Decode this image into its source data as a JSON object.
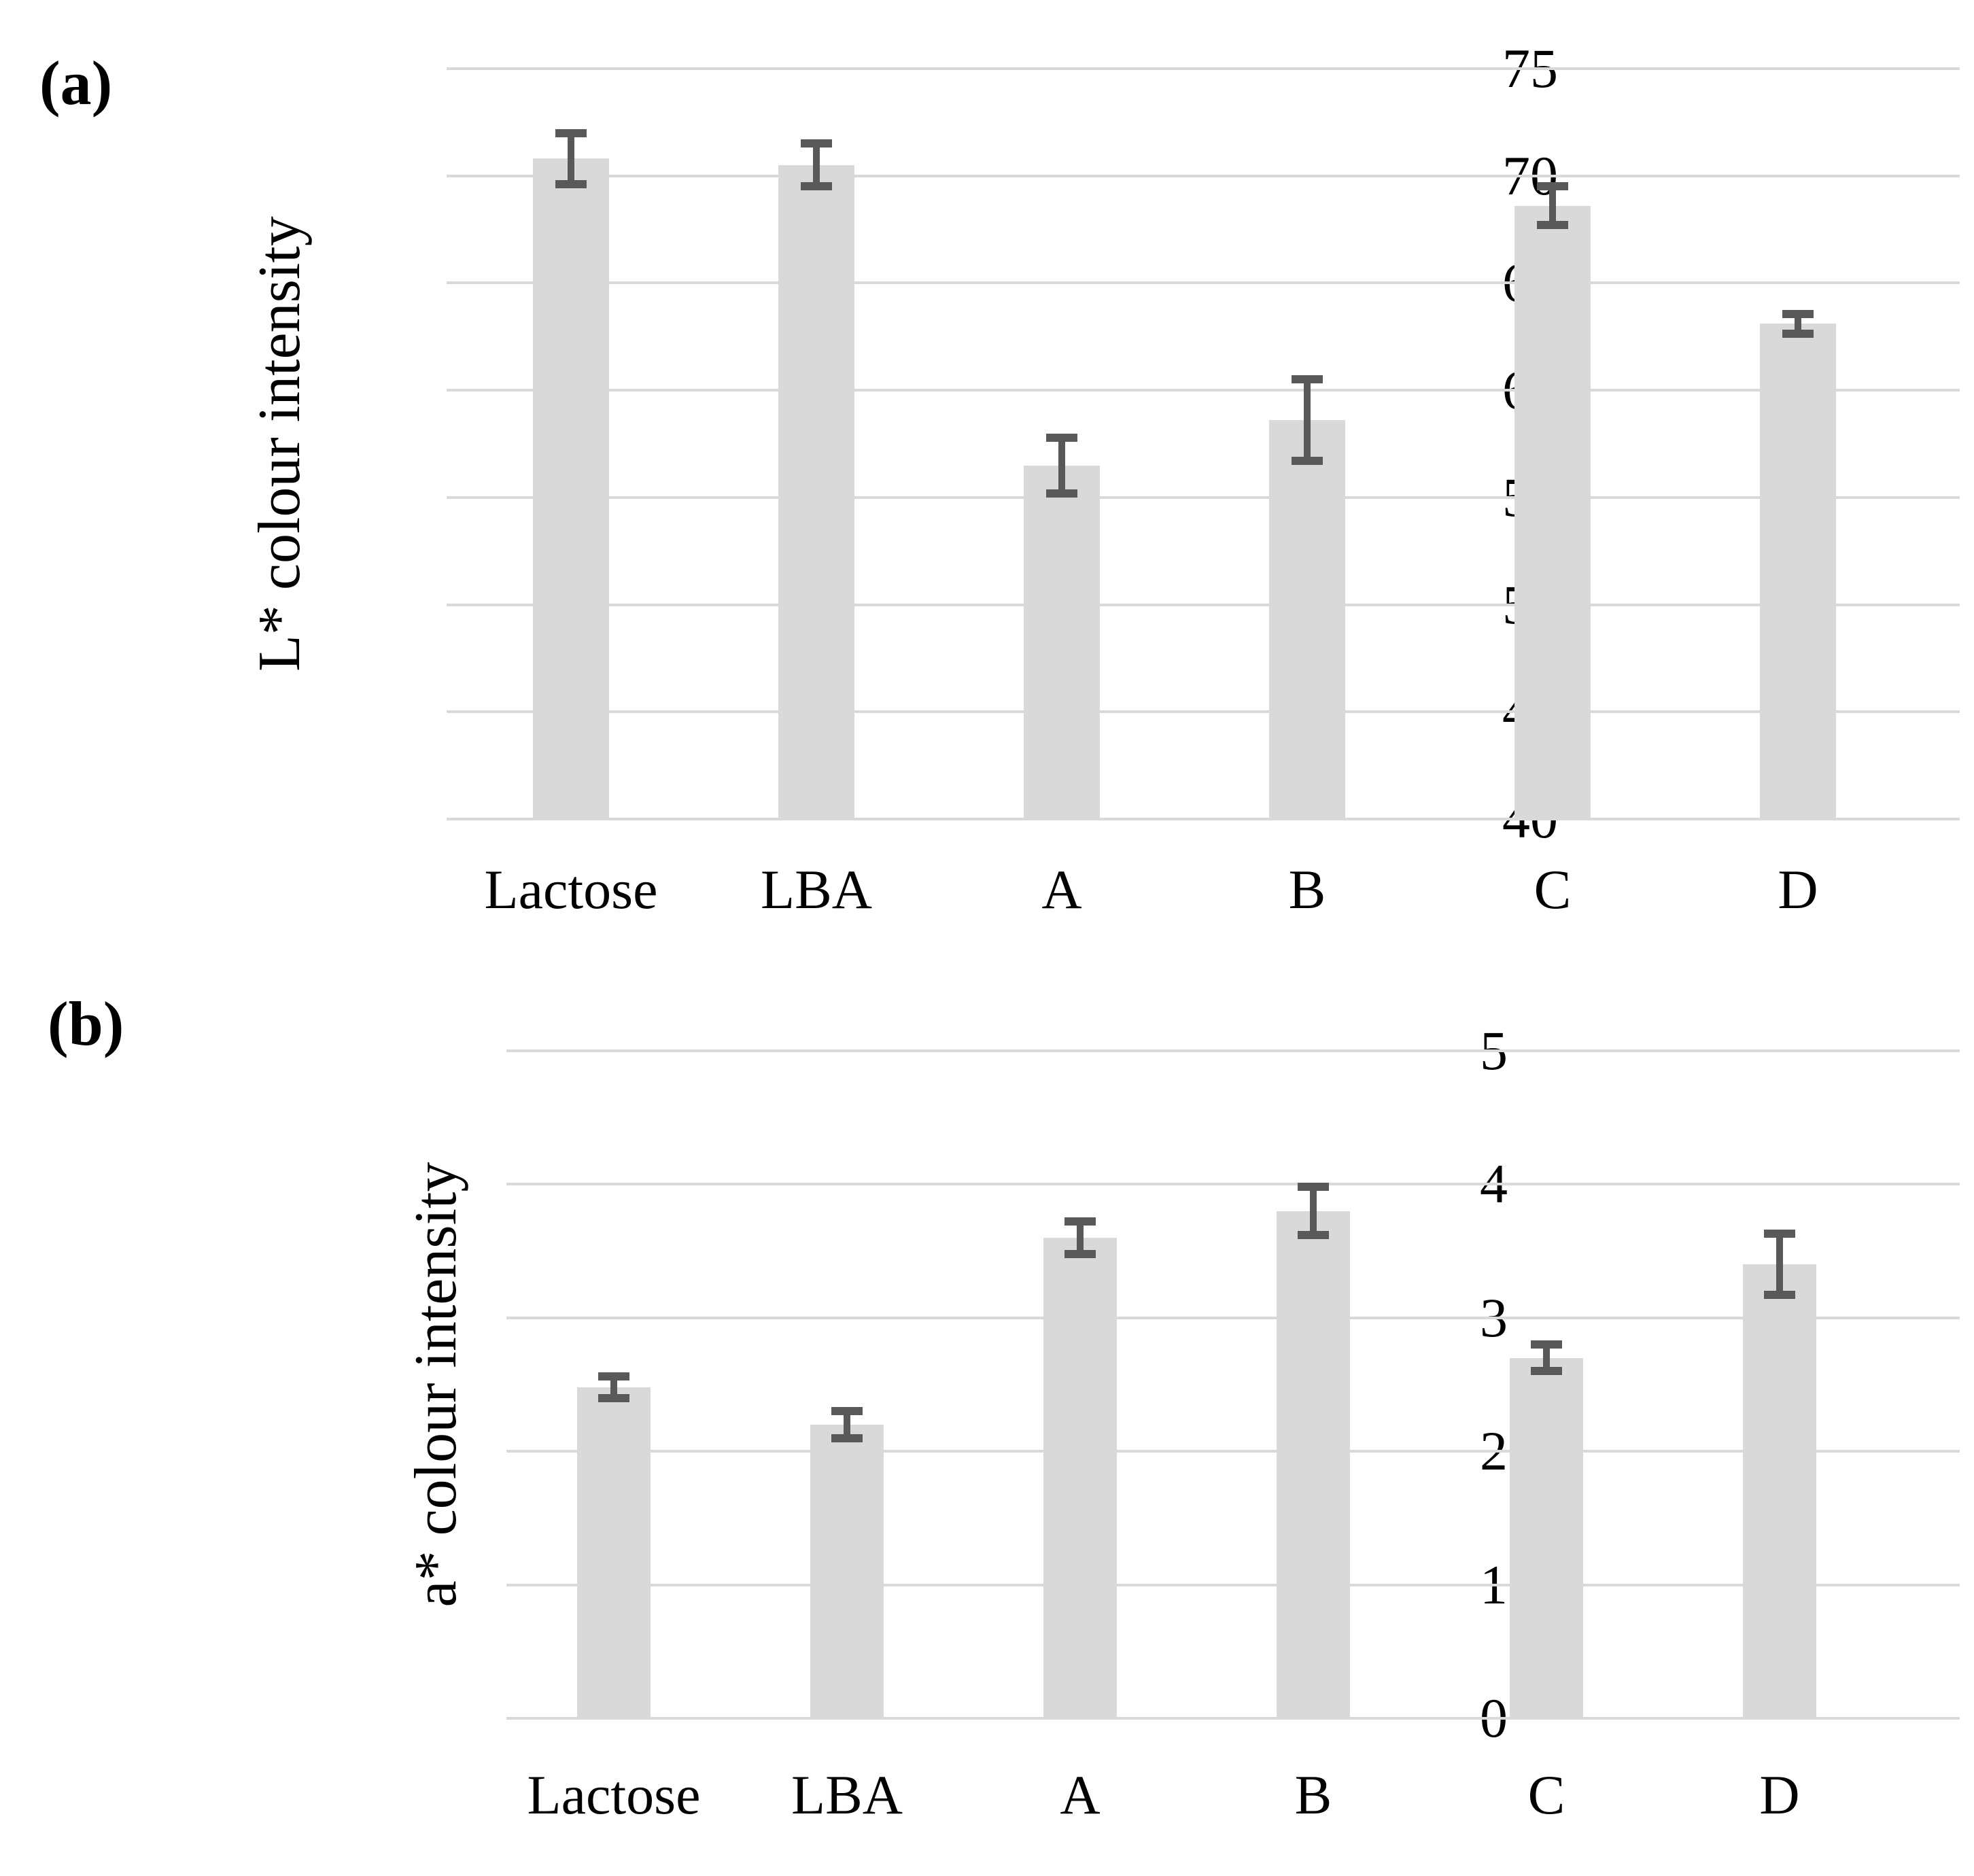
{
  "colors": {
    "bar_fill": "#d9d9d9",
    "gridline": "#d9d9d9",
    "error_bar": "#595959",
    "text": "#000000",
    "background": "#ffffff"
  },
  "chart_data": [
    {
      "type": "bar",
      "panel_label": "(a)",
      "ylabel": "L* colour intensity",
      "xlabel": "",
      "categories": [
        "Lactose",
        "LBA",
        "A",
        "B",
        "C",
        "D"
      ],
      "values": [
        70.8,
        70.5,
        56.5,
        58.6,
        68.6,
        63.1
      ],
      "errors": [
        1.2,
        1.0,
        1.3,
        1.9,
        0.9,
        0.45
      ],
      "ylim": [
        40,
        75
      ],
      "yticks": [
        75,
        70,
        65,
        60,
        55,
        50,
        45,
        40
      ],
      "grid": true,
      "legend": "none"
    },
    {
      "type": "bar",
      "panel_label": "(b)",
      "ylabel": "a* colour intensity",
      "xlabel": "",
      "categories": [
        "Lactose",
        "LBA",
        "A",
        "B",
        "C",
        "D"
      ],
      "values": [
        2.48,
        2.2,
        3.6,
        3.8,
        2.7,
        3.4
      ],
      "errors": [
        0.08,
        0.1,
        0.12,
        0.18,
        0.1,
        0.23
      ],
      "ylim": [
        0,
        5
      ],
      "yticks": [
        5,
        4,
        3,
        2,
        1,
        0
      ],
      "grid": true,
      "legend": "none"
    }
  ]
}
